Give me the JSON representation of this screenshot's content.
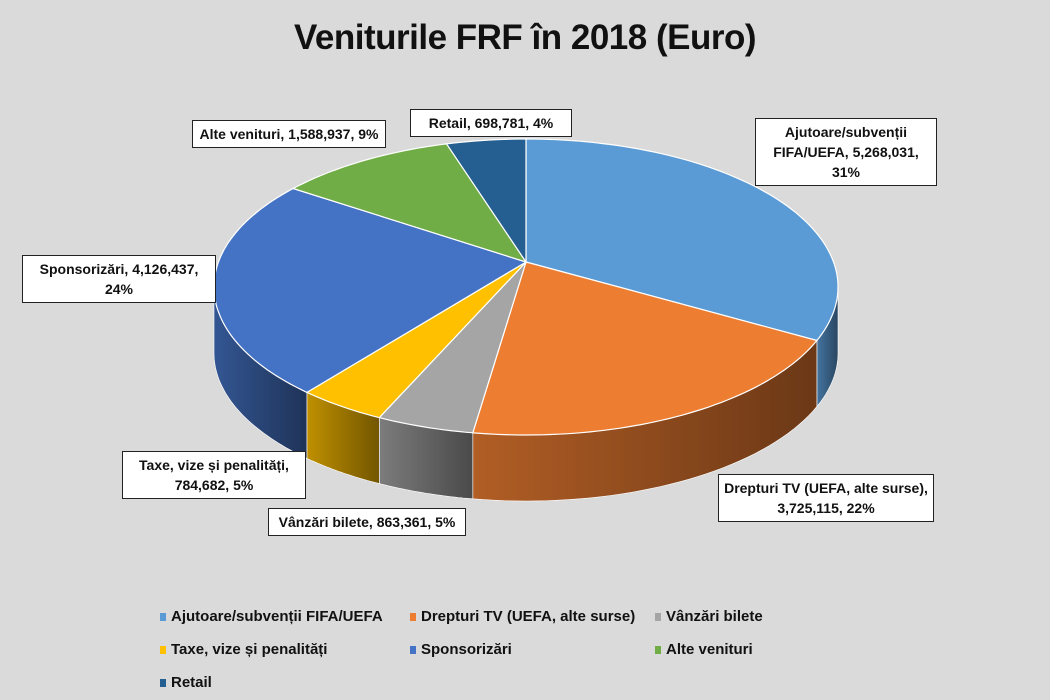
{
  "chart_data": {
    "type": "pie",
    "title": "Veniturile FRF în 2018 (Euro)",
    "slices": [
      {
        "name": "Ajutoare/subvenții FIFA/UEFA",
        "value": 5268031,
        "percent": "31%",
        "color": "#5b9bd5",
        "label": "Ajutoare/subvenții FIFA/UEFA, 5,268,031, 31%"
      },
      {
        "name": "Drepturi TV (UEFA, alte surse)",
        "value": 3725115,
        "percent": "22%",
        "color": "#ed7d31",
        "label": "Drepturi TV (UEFA, alte surse), 3,725,115, 22%"
      },
      {
        "name": "Vânzări bilete",
        "value": 863361,
        "percent": "5%",
        "color": "#a5a5a5",
        "label": "Vânzări bilete, 863,361, 5%"
      },
      {
        "name": "Taxe, vize și penalități",
        "value": 784682,
        "percent": "5%",
        "color": "#ffc000",
        "label": "Taxe, vize și penalități, 784,682, 5%"
      },
      {
        "name": "Sponsorizări",
        "value": 4126437,
        "percent": "24%",
        "color": "#4472c4",
        "label": "Sponsorizări, 4,126,437, 24%"
      },
      {
        "name": "Alte venituri",
        "value": 1588937,
        "percent": "9%",
        "color": "#70ad47",
        "label": "Alte venituri, 1,588,937, 9%"
      },
      {
        "name": "Retail",
        "value": 698781,
        "percent": "4%",
        "color": "#255e91",
        "label": "Retail, 698,781, 4%"
      }
    ],
    "legend_position": "bottom"
  }
}
